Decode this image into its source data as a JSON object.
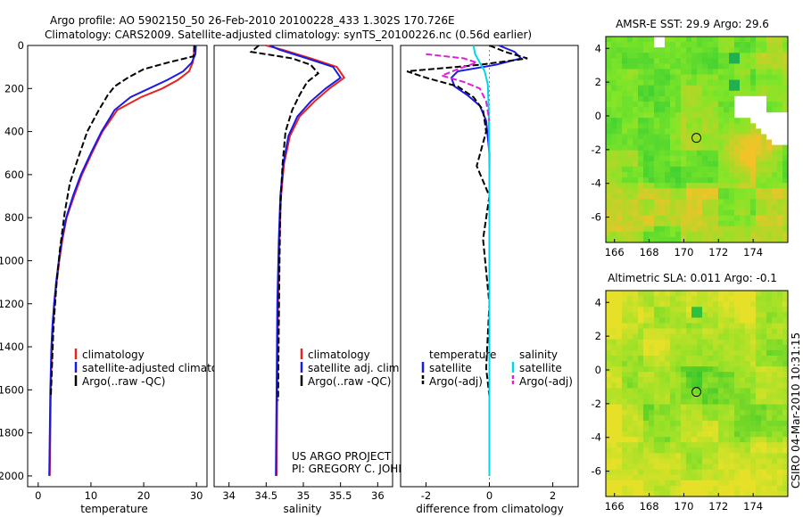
{
  "header": {
    "line1": "Argo profile: AO 5902150_50 26-Feb-2010 20100228_433 1.302S 170.726E",
    "line2": "Climatology: CARS2009. Satellite-adjusted climatology: synTS_20100226.nc (0.56d earlier)"
  },
  "colors": {
    "clim": "#e8231d",
    "sat": "#1a1ae6",
    "argo": "#000000",
    "cyan": "#00d8e8",
    "magenta": "#e020d8"
  },
  "credits": {
    "project": "US ARGO PROJECT",
    "pi": "PI: GREGORY C. JOHNSON"
  },
  "side_stamp": "CSIRO 04-Mar-2010 10:31:15",
  "chart_data": [
    {
      "type": "line",
      "name": "temperature-profile",
      "xlabel": "temperature",
      "ylabel": "",
      "xlim": [
        -2,
        32
      ],
      "ylim": [
        2050,
        0
      ],
      "xticks": [
        0,
        10,
        20,
        30
      ],
      "yticks": [
        0,
        200,
        400,
        600,
        800,
        1000,
        1200,
        1400,
        1600,
        1800,
        2000
      ],
      "legend": [
        "climatology",
        "satellite-adjusted climatology",
        "Argo(..raw -QC)"
      ],
      "series": [
        {
          "name": "climatology",
          "color_key": "clim",
          "x": [
            29.6,
            29.5,
            29.3,
            28.6,
            26.5,
            23.5,
            19.5,
            15.0,
            12.2,
            10.2,
            8.3,
            6.8,
            5.4,
            4.6,
            4.0,
            3.5,
            3.1,
            2.8,
            2.6,
            2.4,
            2.3,
            2.2
          ],
          "y": [
            0,
            40,
            80,
            120,
            160,
            200,
            240,
            300,
            400,
            500,
            600,
            700,
            800,
            900,
            1000,
            1100,
            1200,
            1300,
            1400,
            1600,
            1800,
            2000
          ]
        },
        {
          "name": "satellite",
          "color_key": "sat",
          "x": [
            29.9,
            29.8,
            29.1,
            27.5,
            24.5,
            21.0,
            17.5,
            14.5,
            12.0,
            10.0,
            8.1,
            6.6,
            5.3,
            4.5,
            3.9,
            3.4,
            3.0,
            2.7,
            2.5,
            2.3,
            2.2,
            2.1
          ],
          "y": [
            0,
            40,
            80,
            120,
            160,
            200,
            240,
            300,
            400,
            500,
            600,
            700,
            800,
            900,
            1000,
            1100,
            1200,
            1300,
            1400,
            1600,
            1800,
            2000
          ]
        },
        {
          "name": "argo",
          "color_key": "argo",
          "x": [
            29.6,
            29.5,
            24.5,
            20.0,
            17.0,
            14.5,
            13.2,
            11.5,
            9.3,
            7.6,
            6.0,
            5.0,
            4.1,
            3.5,
            2.9,
            2.6,
            2.4
          ],
          "y": [
            0,
            50,
            80,
            110,
            150,
            190,
            230,
            300,
            400,
            520,
            640,
            780,
            950,
            1100,
            1300,
            1500,
            1630
          ]
        }
      ]
    },
    {
      "type": "line",
      "name": "salinity-profile",
      "xlabel": "salinity",
      "ylabel": "",
      "xlim": [
        33.8,
        36.2
      ],
      "ylim": [
        2050,
        0
      ],
      "xticks": [
        34,
        34.5,
        35,
        35.5,
        36
      ],
      "yticks": [],
      "legend": [
        "climatology",
        "satellite adj. clim.",
        "Argo(..raw -QC)"
      ],
      "series": [
        {
          "name": "climatology",
          "color_key": "clim",
          "x": [
            34.5,
            34.72,
            35.1,
            35.45,
            35.55,
            35.35,
            35.15,
            34.95,
            34.82,
            34.74,
            34.7,
            34.68,
            34.66,
            34.65,
            34.64
          ],
          "y": [
            0,
            20,
            60,
            100,
            150,
            200,
            260,
            330,
            420,
            550,
            700,
            900,
            1200,
            1600,
            2000
          ]
        },
        {
          "name": "satellite",
          "color_key": "sat",
          "x": [
            34.55,
            34.68,
            35.05,
            35.4,
            35.5,
            35.3,
            35.1,
            34.92,
            34.8,
            34.73,
            34.69,
            34.67,
            34.65,
            34.64,
            34.63
          ],
          "y": [
            0,
            20,
            60,
            100,
            150,
            200,
            260,
            330,
            420,
            550,
            700,
            900,
            1200,
            1600,
            2000
          ]
        },
        {
          "name": "argo",
          "color_key": "argo",
          "x": [
            34.4,
            34.3,
            34.85,
            35.1,
            35.2,
            35.05,
            34.95,
            34.85,
            34.76,
            34.72,
            34.69,
            34.68,
            34.67,
            34.66
          ],
          "y": [
            0,
            30,
            60,
            90,
            130,
            170,
            230,
            300,
            400,
            550,
            750,
            1000,
            1300,
            1650
          ]
        }
      ]
    },
    {
      "type": "line",
      "name": "difference-profile",
      "xlabel": "difference from climatology",
      "ylabel": "",
      "xlim": [
        -2.8,
        2.8
      ],
      "ylim": [
        2050,
        0
      ],
      "xticks": [
        -2,
        0,
        2
      ],
      "yticks": [],
      "legend_titles": [
        "temperature",
        "salinity"
      ],
      "legend": [
        "satellite",
        "Argo(-adj)",
        "satellite",
        "Argo(-adj)"
      ],
      "series": [
        {
          "name": "temperature satellite",
          "color_key": "sat",
          "x": [
            0.3,
            0.8,
            1.0,
            0.2,
            -1.0,
            -1.2,
            -1.1,
            -0.7,
            -0.3,
            -0.1,
            0.0,
            0.0,
            0.0,
            0.0
          ],
          "y": [
            0,
            30,
            60,
            90,
            120,
            150,
            190,
            230,
            280,
            350,
            500,
            800,
            1400,
            2000
          ]
        },
        {
          "name": "temperature argo",
          "color_key": "argo",
          "x": [
            0.0,
            0.5,
            1.2,
            -0.3,
            -2.6,
            -2.0,
            -1.0,
            -0.5,
            -0.2,
            -0.1,
            -0.4,
            0.0,
            -0.2,
            0.0,
            -0.1,
            0.0
          ],
          "y": [
            0,
            30,
            60,
            90,
            120,
            150,
            190,
            240,
            300,
            400,
            560,
            700,
            900,
            1200,
            1500,
            1630
          ]
        },
        {
          "name": "salinity satellite",
          "color_key": "cyan",
          "x": [
            -0.5,
            -0.45,
            -0.3,
            -0.15,
            -0.05,
            -0.02,
            0.0,
            0.0,
            0.0
          ],
          "y": [
            0,
            40,
            80,
            120,
            180,
            300,
            600,
            1200,
            2000
          ]
        },
        {
          "name": "salinity argo",
          "color_key": "magenta",
          "x": [
            -2.0,
            -0.8,
            -0.4,
            -1.0,
            -1.5,
            -0.8,
            -0.3,
            -0.1,
            0.0
          ],
          "y": [
            40,
            60,
            80,
            110,
            140,
            170,
            200,
            260,
            350
          ]
        }
      ]
    },
    {
      "type": "heatmap",
      "name": "sst-map",
      "title": "AMSR-E SST: 29.9 Argo: 29.6",
      "xlim": [
        165.5,
        176
      ],
      "ylim": [
        -7.5,
        4.7
      ],
      "xticks": [
        166,
        168,
        170,
        172,
        174
      ],
      "yticks": [
        4,
        2,
        0,
        -2,
        -4,
        -6
      ],
      "float_position": [
        170.726,
        -1.302
      ]
    },
    {
      "type": "heatmap",
      "name": "sla-map",
      "title": "Altimetric SLA: 0.011 Argo: -0.1",
      "xlim": [
        165.5,
        176
      ],
      "ylim": [
        -7.5,
        4.7
      ],
      "xticks": [
        166,
        168,
        170,
        172,
        174
      ],
      "yticks": [
        4,
        2,
        0,
        -2,
        -4,
        -6
      ],
      "float_position": [
        170.726,
        -1.302
      ]
    }
  ]
}
